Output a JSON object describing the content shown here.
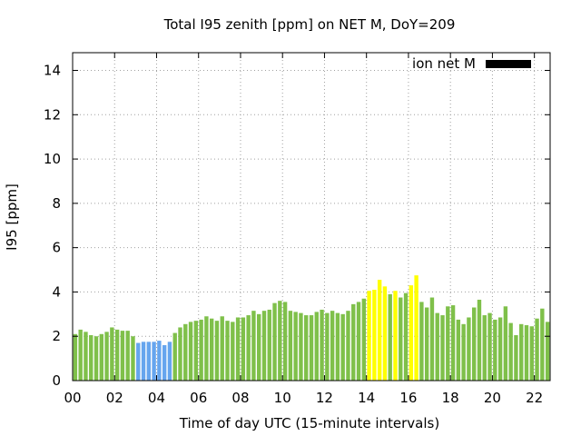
{
  "chart_data": {
    "type": "bar",
    "title": "Total I95 zenith [ppm] on NET M, DoY=209",
    "xlabel": "Time of day UTC (15-minute intervals)",
    "ylabel": "I95 [ppm]",
    "xlim": [
      0,
      22.75
    ],
    "ylim": [
      0,
      14.8
    ],
    "x_ticks": [
      "00",
      "02",
      "04",
      "06",
      "08",
      "10",
      "12",
      "14",
      "16",
      "18",
      "20",
      "22"
    ],
    "y_ticks": [
      "0",
      "2",
      "4",
      "6",
      "8",
      "10",
      "12",
      "14"
    ],
    "grid": true,
    "legend": {
      "label": "ion net M",
      "color": "#000000",
      "position": "top-right"
    },
    "bar_width_hours": 0.19,
    "colors": {
      "green": "#7fc04a",
      "blue": "#66a5ee",
      "yellow": "#ffff00"
    },
    "values": [
      2.1,
      2.3,
      2.2,
      2.05,
      2.0,
      2.1,
      2.2,
      2.4,
      2.3,
      2.25,
      2.25,
      2.0,
      1.7,
      1.75,
      1.75,
      1.75,
      1.8,
      1.6,
      1.75,
      2.15,
      2.4,
      2.55,
      2.65,
      2.7,
      2.75,
      2.9,
      2.8,
      2.7,
      2.9,
      2.7,
      2.65,
      2.85,
      2.85,
      2.95,
      3.15,
      3.0,
      3.15,
      3.2,
      3.5,
      3.6,
      3.55,
      3.15,
      3.1,
      3.05,
      2.95,
      2.95,
      3.1,
      3.2,
      3.05,
      3.15,
      3.05,
      3.0,
      3.15,
      3.45,
      3.55,
      3.7,
      4.05,
      4.1,
      4.55,
      4.25,
      3.9,
      4.05,
      3.75,
      3.95,
      4.3,
      4.75,
      3.55,
      3.3,
      3.75,
      3.05,
      2.95,
      3.35,
      3.4,
      2.75,
      2.55,
      2.85,
      3.3,
      3.65,
      2.95,
      3.05,
      2.75,
      2.85,
      3.35,
      2.6,
      2.05,
      2.55,
      2.5,
      2.45,
      2.8,
      3.25,
      2.65,
      2.95
    ],
    "bar_colors": [
      "green",
      "green",
      "green",
      "green",
      "green",
      "green",
      "green",
      "green",
      "green",
      "green",
      "green",
      "green",
      "blue",
      "blue",
      "blue",
      "blue",
      "blue",
      "blue",
      "blue",
      "green",
      "green",
      "green",
      "green",
      "green",
      "green",
      "green",
      "green",
      "green",
      "green",
      "green",
      "green",
      "green",
      "green",
      "green",
      "green",
      "green",
      "green",
      "green",
      "green",
      "green",
      "green",
      "green",
      "green",
      "green",
      "green",
      "green",
      "green",
      "green",
      "green",
      "green",
      "green",
      "green",
      "green",
      "green",
      "green",
      "green",
      "yellow",
      "yellow",
      "yellow",
      "yellow",
      "green",
      "yellow",
      "green",
      "green",
      "yellow",
      "yellow",
      "green",
      "green",
      "green",
      "green",
      "green",
      "green",
      "green",
      "green",
      "green",
      "green",
      "green",
      "green",
      "green",
      "green",
      "green",
      "green",
      "green",
      "green",
      "green",
      "green",
      "green",
      "green",
      "green",
      "green",
      "green",
      "green"
    ]
  }
}
